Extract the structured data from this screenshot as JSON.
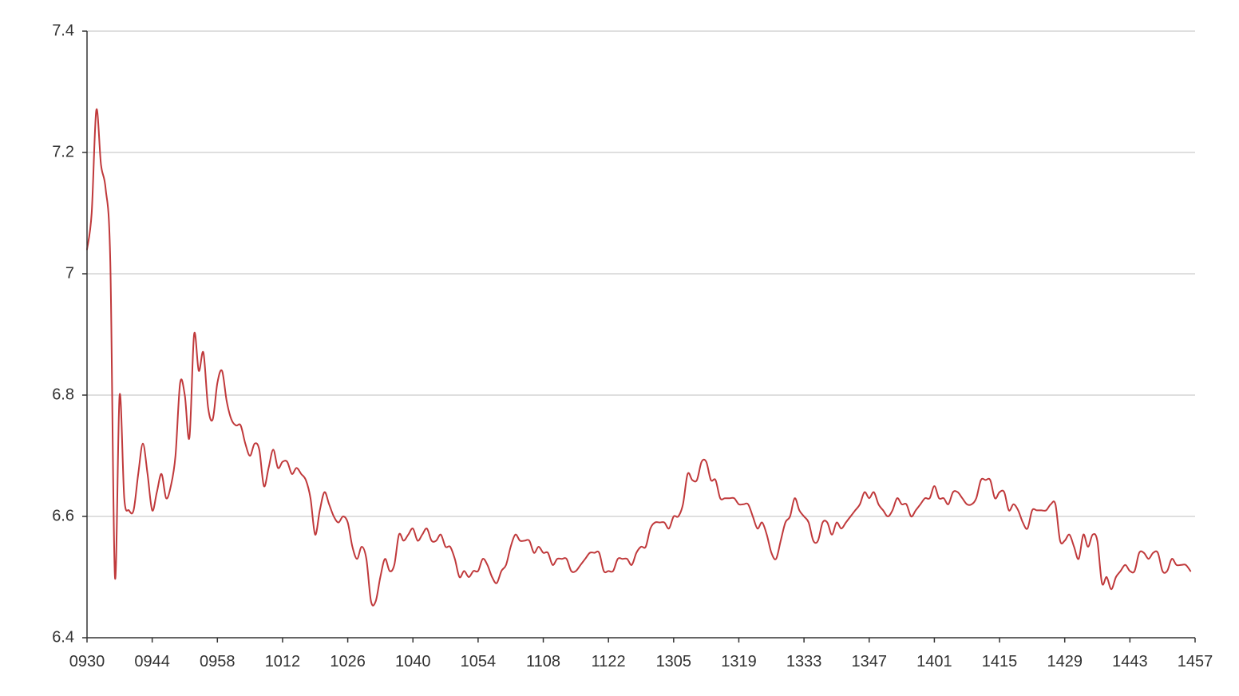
{
  "chart_data": {
    "type": "line",
    "title": "",
    "xlabel": "",
    "ylabel": "",
    "ylim": [
      6.4,
      7.4
    ],
    "grid": true,
    "y_ticks": [
      "6.4",
      "6.6",
      "6.8",
      "7",
      "7.2",
      "7.4"
    ],
    "x_ticks": [
      "0930",
      "0944",
      "0958",
      "1012",
      "1026",
      "1040",
      "1054",
      "1108",
      "1122",
      "1305",
      "1319",
      "1333",
      "1347",
      "1401",
      "1415",
      "1429",
      "1443",
      "1457"
    ],
    "x_tick_index": [
      0,
      14,
      28,
      42,
      56,
      70,
      84,
      98,
      112,
      126,
      140,
      154,
      168,
      182,
      196,
      210,
      224,
      238
    ],
    "series": [
      {
        "color": "#c0393b",
        "values": [
          7.04,
          7.1,
          7.27,
          7.18,
          7.14,
          7.02,
          6.5,
          6.8,
          6.63,
          6.61,
          6.61,
          6.67,
          6.72,
          6.67,
          6.61,
          6.64,
          6.67,
          6.63,
          6.65,
          6.7,
          6.82,
          6.8,
          6.73,
          6.9,
          6.84,
          6.87,
          6.78,
          6.76,
          6.82,
          6.84,
          6.79,
          6.76,
          6.75,
          6.75,
          6.72,
          6.7,
          6.72,
          6.71,
          6.65,
          6.68,
          6.71,
          6.68,
          6.69,
          6.69,
          6.67,
          6.68,
          6.67,
          6.66,
          6.63,
          6.57,
          6.61,
          6.64,
          6.62,
          6.6,
          6.59,
          6.6,
          6.59,
          6.55,
          6.53,
          6.55,
          6.53,
          6.46,
          6.46,
          6.5,
          6.53,
          6.51,
          6.52,
          6.57,
          6.56,
          6.57,
          6.58,
          6.56,
          6.57,
          6.58,
          6.56,
          6.56,
          6.57,
          6.55,
          6.55,
          6.53,
          6.5,
          6.51,
          6.5,
          6.51,
          6.51,
          6.53,
          6.52,
          6.5,
          6.49,
          6.51,
          6.52,
          6.55,
          6.57,
          6.56,
          6.56,
          6.56,
          6.54,
          6.55,
          6.54,
          6.54,
          6.52,
          6.53,
          6.53,
          6.53,
          6.51,
          6.51,
          6.52,
          6.53,
          6.54,
          6.54,
          6.54,
          6.51,
          6.51,
          6.51,
          6.53,
          6.53,
          6.53,
          6.52,
          6.54,
          6.55,
          6.55,
          6.58,
          6.59,
          6.59,
          6.59,
          6.58,
          6.6,
          6.6,
          6.62,
          6.67,
          6.66,
          6.66,
          6.69,
          6.69,
          6.66,
          6.66,
          6.63,
          6.63,
          6.63,
          6.63,
          6.62,
          6.62,
          6.62,
          6.6,
          6.58,
          6.59,
          6.57,
          6.54,
          6.53,
          6.56,
          6.59,
          6.6,
          6.63,
          6.61,
          6.6,
          6.59,
          6.56,
          6.56,
          6.59,
          6.59,
          6.57,
          6.59,
          6.58,
          6.59,
          6.6,
          6.61,
          6.62,
          6.64,
          6.63,
          6.64,
          6.62,
          6.61,
          6.6,
          6.61,
          6.63,
          6.62,
          6.62,
          6.6,
          6.61,
          6.62,
          6.63,
          6.63,
          6.65,
          6.63,
          6.63,
          6.62,
          6.64,
          6.64,
          6.63,
          6.62,
          6.62,
          6.63,
          6.66,
          6.66,
          6.66,
          6.63,
          6.64,
          6.64,
          6.61,
          6.62,
          6.61,
          6.59,
          6.58,
          6.61,
          6.61,
          6.61,
          6.61,
          6.62,
          6.62,
          6.56,
          6.56,
          6.57,
          6.55,
          6.53,
          6.57,
          6.55,
          6.57,
          6.56,
          6.49,
          6.5,
          6.48,
          6.5,
          6.51,
          6.52,
          6.51,
          6.51,
          6.54,
          6.54,
          6.53,
          6.54,
          6.54,
          6.51,
          6.51,
          6.53,
          6.52,
          6.52,
          6.52,
          6.51
        ]
      }
    ]
  }
}
